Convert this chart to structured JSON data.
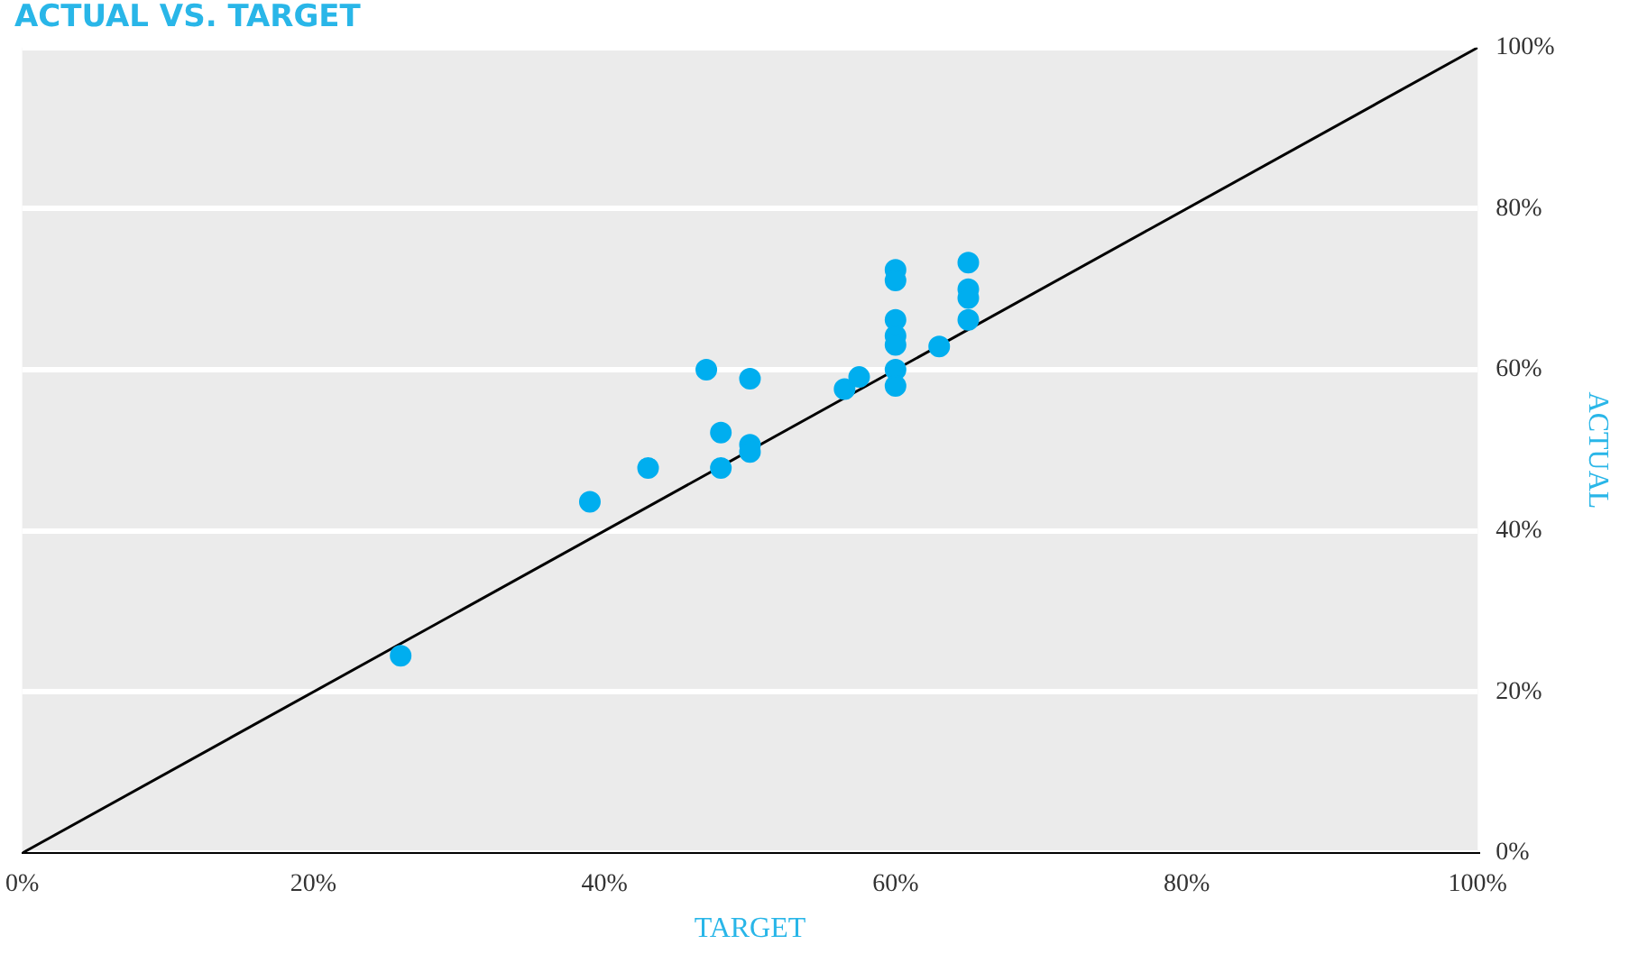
{
  "chart_data": {
    "type": "scatter",
    "title": "ACTUAL VS. TARGET",
    "xlabel": "TARGET",
    "ylabel": "ACTUAL",
    "xlim": [
      0,
      100
    ],
    "ylim": [
      0,
      100
    ],
    "xticks": [
      {
        "value": 0,
        "label": "0%"
      },
      {
        "value": 20,
        "label": "20%"
      },
      {
        "value": 40,
        "label": "40%"
      },
      {
        "value": 60,
        "label": "60%"
      },
      {
        "value": 80,
        "label": "80%"
      },
      {
        "value": 100,
        "label": "100%"
      }
    ],
    "yticks": [
      {
        "value": 0,
        "label": "0%"
      },
      {
        "value": 20,
        "label": "20%"
      },
      {
        "value": 40,
        "label": "40%"
      },
      {
        "value": 60,
        "label": "60%"
      },
      {
        "value": 80,
        "label": "80%"
      },
      {
        "value": 100,
        "label": "100%"
      }
    ],
    "grid": "y",
    "legend": false,
    "marker": "circle",
    "series": [
      {
        "type": "line",
        "color": "#000000",
        "x": [
          0,
          100
        ],
        "values": [
          0,
          100
        ],
        "marker": "none"
      },
      {
        "color": "#00aeef",
        "x": [
          26,
          39,
          43,
          47,
          48,
          48,
          50,
          50,
          50,
          56.5,
          57.5,
          60,
          60,
          60,
          60,
          60,
          60,
          60,
          63,
          65,
          65,
          65,
          65
        ],
        "values": [
          24.5,
          43.6,
          47.8,
          60,
          52.2,
          47.8,
          58.9,
          50.7,
          49.8,
          57.6,
          59.1,
          72.4,
          71.1,
          66.2,
          64.2,
          63.1,
          60,
          58,
          62.9,
          73.3,
          70,
          68.9,
          66.2
        ]
      }
    ]
  }
}
